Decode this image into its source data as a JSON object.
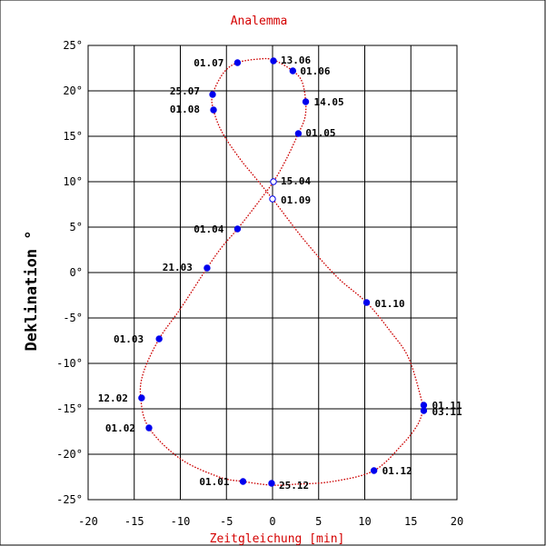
{
  "chart_data": {
    "type": "scatter",
    "title": "Analemma",
    "xlabel": "Zeitgleichung [min]",
    "ylabel": "Deklination °",
    "xlim": [
      -20,
      20
    ],
    "ylim": [
      -25,
      25
    ],
    "x_ticks": [
      -20,
      -15,
      -10,
      -5,
      0,
      5,
      10,
      15,
      20
    ],
    "y_ticks": [
      25,
      20,
      15,
      10,
      5,
      0,
      -5,
      -10,
      -15,
      -20,
      -25
    ],
    "y_tick_labels": [
      "25°",
      "20°",
      "15°",
      "10°",
      "5°",
      "0°",
      "-5°",
      "-10°",
      "-15°",
      "-20°",
      "-25°"
    ],
    "grid": true,
    "colors": {
      "curve": "#cc0000",
      "points": "#0000ee",
      "title": "#d40000",
      "axis_label": "#d40000"
    },
    "curve": [
      [
        -3.2,
        -23.0
      ],
      [
        -5.8,
        -22.5
      ],
      [
        -10.0,
        -20.5
      ],
      [
        -13.4,
        -17.1
      ],
      [
        -14.3,
        -13.8
      ],
      [
        -14.0,
        -11.0
      ],
      [
        -12.3,
        -7.3
      ],
      [
        -10.0,
        -4.0
      ],
      [
        -7.1,
        0.5
      ],
      [
        -5.5,
        2.8
      ],
      [
        -3.8,
        4.8
      ],
      [
        -1.5,
        7.8
      ],
      [
        0.1,
        10.0
      ],
      [
        1.5,
        12.5
      ],
      [
        2.8,
        15.3
      ],
      [
        3.5,
        17.0
      ],
      [
        3.6,
        18.8
      ],
      [
        3.2,
        21.0
      ],
      [
        2.2,
        22.2
      ],
      [
        0.1,
        23.4
      ],
      [
        -1.5,
        23.5
      ],
      [
        -3.8,
        23.1
      ],
      [
        -5.3,
        22.0
      ],
      [
        -6.5,
        19.6
      ],
      [
        -6.4,
        17.9
      ],
      [
        -5.5,
        15.5
      ],
      [
        -3.6,
        12.6
      ],
      [
        -2.0,
        10.6
      ],
      [
        0.0,
        8.1
      ],
      [
        3.5,
        3.5
      ],
      [
        7.0,
        -0.5
      ],
      [
        10.2,
        -3.3
      ],
      [
        12.8,
        -6.5
      ],
      [
        14.8,
        -9.5
      ],
      [
        16.3,
        -14.6
      ],
      [
        16.3,
        -15.2
      ],
      [
        15.7,
        -16.8
      ],
      [
        14.0,
        -19.0
      ],
      [
        11.0,
        -21.8
      ],
      [
        6.5,
        -23.0
      ],
      [
        2.5,
        -23.3
      ],
      [
        -0.1,
        -23.4
      ],
      [
        -3.2,
        -23.0
      ]
    ],
    "points": [
      {
        "label": "13.06",
        "x": 0.1,
        "y": 23.3,
        "filled": true
      },
      {
        "label": "01.06",
        "x": 2.2,
        "y": 22.2,
        "filled": true
      },
      {
        "label": "14.05",
        "x": 3.6,
        "y": 18.8,
        "filled": true
      },
      {
        "label": "01.05",
        "x": 2.8,
        "y": 15.3,
        "filled": true
      },
      {
        "label": "15.04",
        "x": 0.1,
        "y": 10.0,
        "filled": false
      },
      {
        "label": "01.09",
        "x": 0.0,
        "y": 8.1,
        "filled": false
      },
      {
        "label": "01.07",
        "x": -3.8,
        "y": 23.1,
        "filled": true
      },
      {
        "label": "25.07",
        "x": -6.5,
        "y": 19.6,
        "filled": true
      },
      {
        "label": "01.08",
        "x": -6.4,
        "y": 17.9,
        "filled": true
      },
      {
        "label": "01.04",
        "x": -3.8,
        "y": 4.8,
        "filled": true
      },
      {
        "label": "21.03",
        "x": -7.1,
        "y": 0.5,
        "filled": true
      },
      {
        "label": "01.10",
        "x": 10.2,
        "y": -3.3,
        "filled": true
      },
      {
        "label": "01.03",
        "x": -12.3,
        "y": -7.3,
        "filled": true
      },
      {
        "label": "12.02",
        "x": -14.2,
        "y": -13.8,
        "filled": true
      },
      {
        "label": "01.02",
        "x": -13.4,
        "y": -17.1,
        "filled": true
      },
      {
        "label": "01.11",
        "x": 16.4,
        "y": -14.6,
        "filled": true
      },
      {
        "label": "03.11",
        "x": 16.4,
        "y": -15.2,
        "filled": true
      },
      {
        "label": "01.12",
        "x": 11.0,
        "y": -21.8,
        "filled": true
      },
      {
        "label": "01.01",
        "x": -3.2,
        "y": -23.0,
        "filled": true
      },
      {
        "label": "25.12",
        "x": -0.1,
        "y": -23.2,
        "filled": true
      }
    ]
  }
}
